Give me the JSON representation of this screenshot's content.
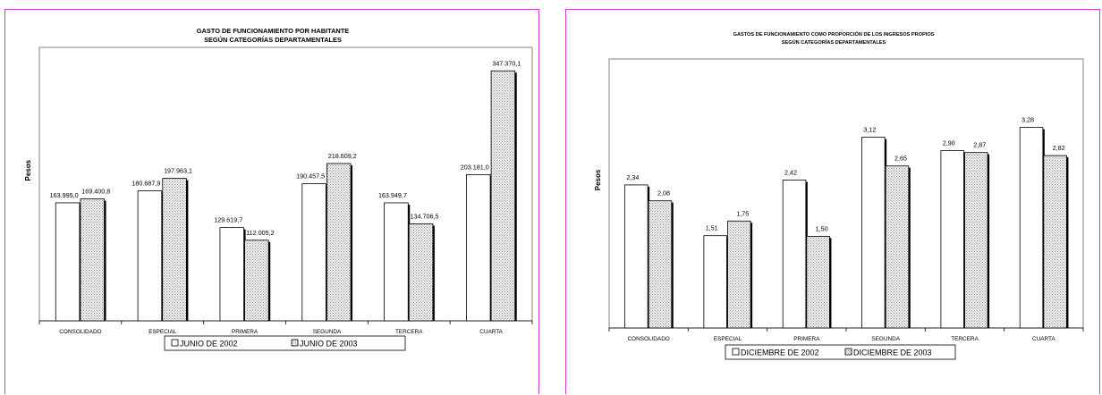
{
  "charts_style": {
    "bar1_fill": "#ffffff",
    "bar2_fill": "#d8d8d8",
    "border": "#d63ad6",
    "shadow": "#000000"
  },
  "chart_data": [
    {
      "type": "bar",
      "title_lines": [
        "GASTO DE FUNCIONAMIENTO POR HABITANTE",
        "SEGÚN CATEGORÍAS DEPARTAMENTALES"
      ],
      "ylabel": "Pesos",
      "xlabel": "",
      "categories": [
        "CONSOLIDADO",
        "ESPECIAL",
        "PRIMERA",
        "SEGUNDA",
        "TERCERA",
        "CUARTA"
      ],
      "series": [
        {
          "name": "JUNIO DE 2002",
          "values": [
            163995.0,
            180687.9,
            129619.7,
            190457.5,
            163949.7,
            203181.0
          ],
          "labels": [
            "163.995,0",
            "180.687,9",
            "129.619,7",
            "190.457,5",
            "163.949,7",
            "203.181,0"
          ]
        },
        {
          "name": "JUNIO DE 2003",
          "values": [
            169400.8,
            197963.1,
            112005.2,
            218609.2,
            134706.5,
            347370.1
          ],
          "labels": [
            "169.400,8",
            "197.963,1",
            "112.005,2",
            "218.609,2",
            "134.706,5",
            "347.370,1"
          ]
        }
      ],
      "ylim": [
        0,
        380000
      ],
      "legend": "bottom",
      "grid": false
    },
    {
      "type": "bar",
      "title_lines": [
        "GASTOS DE FUNCIONAMIENTO COMO PROPORCIÓN DE LOS INGRESOS PROPIOS",
        "SEGÚN CATEGORÍAS DEPARTAMENTALES"
      ],
      "ylabel": "Pesos",
      "xlabel": "",
      "categories": [
        "CONSOLIDADO",
        "ESPECIAL",
        "PRIMERA",
        "SEGUNDA",
        "TERCERA",
        "CUARTA"
      ],
      "series": [
        {
          "name": "DICIEMBRE DE 2002",
          "values": [
            2.34,
            1.51,
            2.42,
            3.12,
            2.9,
            3.28
          ],
          "labels": [
            "2,34",
            "1,51",
            "2,42",
            "3,12",
            "2,90",
            "3,28"
          ]
        },
        {
          "name": "DICIEMBRE DE 2003",
          "values": [
            2.08,
            1.75,
            1.5,
            2.65,
            2.87,
            2.82
          ],
          "labels": [
            "2,08",
            "1,75",
            "1,50",
            "2,65",
            "2,87",
            "2,82"
          ]
        }
      ],
      "ylim": [
        0,
        4.4
      ],
      "legend": "bottom",
      "grid": false
    }
  ]
}
